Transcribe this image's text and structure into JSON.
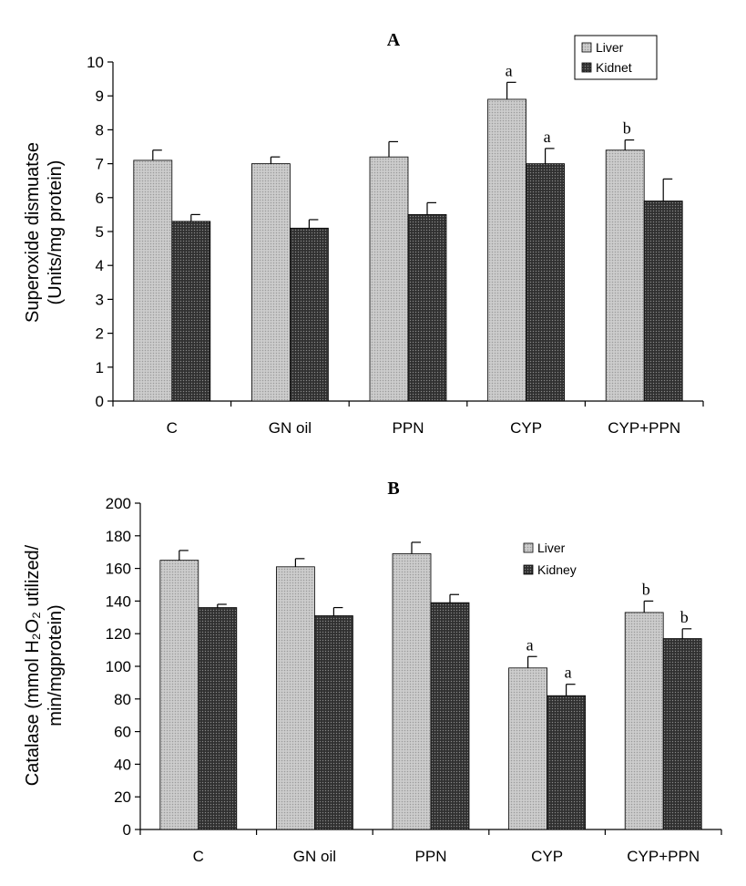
{
  "chart_data": [
    {
      "type": "bar",
      "title": "A",
      "ylabel_line1": "Superoxide dismuatse",
      "ylabel_line2": "(Units/mg protein)",
      "xlabel": "",
      "categories": [
        "C",
        "GN oil",
        "PPN",
        "CYP",
        "CYP+PPN"
      ],
      "ylim": [
        0,
        10
      ],
      "yticks": [
        0,
        1,
        2,
        3,
        4,
        5,
        6,
        7,
        8,
        9,
        10
      ],
      "legend_position": "top-right",
      "series": [
        {
          "name": "Liver",
          "color": "#bdbdbd",
          "values": [
            7.1,
            7.0,
            7.2,
            8.9,
            7.4
          ],
          "errors": [
            0.3,
            0.2,
            0.45,
            0.5,
            0.3
          ],
          "sig": [
            "",
            "",
            "",
            "a",
            "b"
          ]
        },
        {
          "name": "Kidnet",
          "color": "#383838",
          "values": [
            5.3,
            5.1,
            5.5,
            7.0,
            5.9
          ],
          "errors": [
            0.2,
            0.25,
            0.35,
            0.45,
            0.65
          ],
          "sig": [
            "",
            "",
            "",
            "a",
            ""
          ]
        }
      ]
    },
    {
      "type": "bar",
      "title": "B",
      "ylabel_line1": "Catalase (mmol H₂O₂ utilized/",
      "ylabel_line2": "min/mgprotein)",
      "xlabel": "",
      "categories": [
        "C",
        "GN oil",
        "PPN",
        "CYP",
        "CYP+PPN"
      ],
      "ylim": [
        0,
        200
      ],
      "yticks": [
        0,
        20,
        40,
        60,
        80,
        100,
        120,
        140,
        160,
        180,
        200
      ],
      "legend_position": "top-right",
      "series": [
        {
          "name": "Liver",
          "color": "#bdbdbd",
          "values": [
            165,
            161,
            169,
            99,
            133
          ],
          "errors": [
            6,
            5,
            7,
            7,
            7
          ],
          "sig": [
            "",
            "",
            "",
            "a",
            "b"
          ]
        },
        {
          "name": "Kidney",
          "color": "#383838",
          "values": [
            136,
            131,
            139,
            82,
            117
          ],
          "errors": [
            2,
            5,
            5,
            7,
            6
          ],
          "sig": [
            "",
            "",
            "",
            "a",
            "b"
          ]
        }
      ]
    }
  ]
}
